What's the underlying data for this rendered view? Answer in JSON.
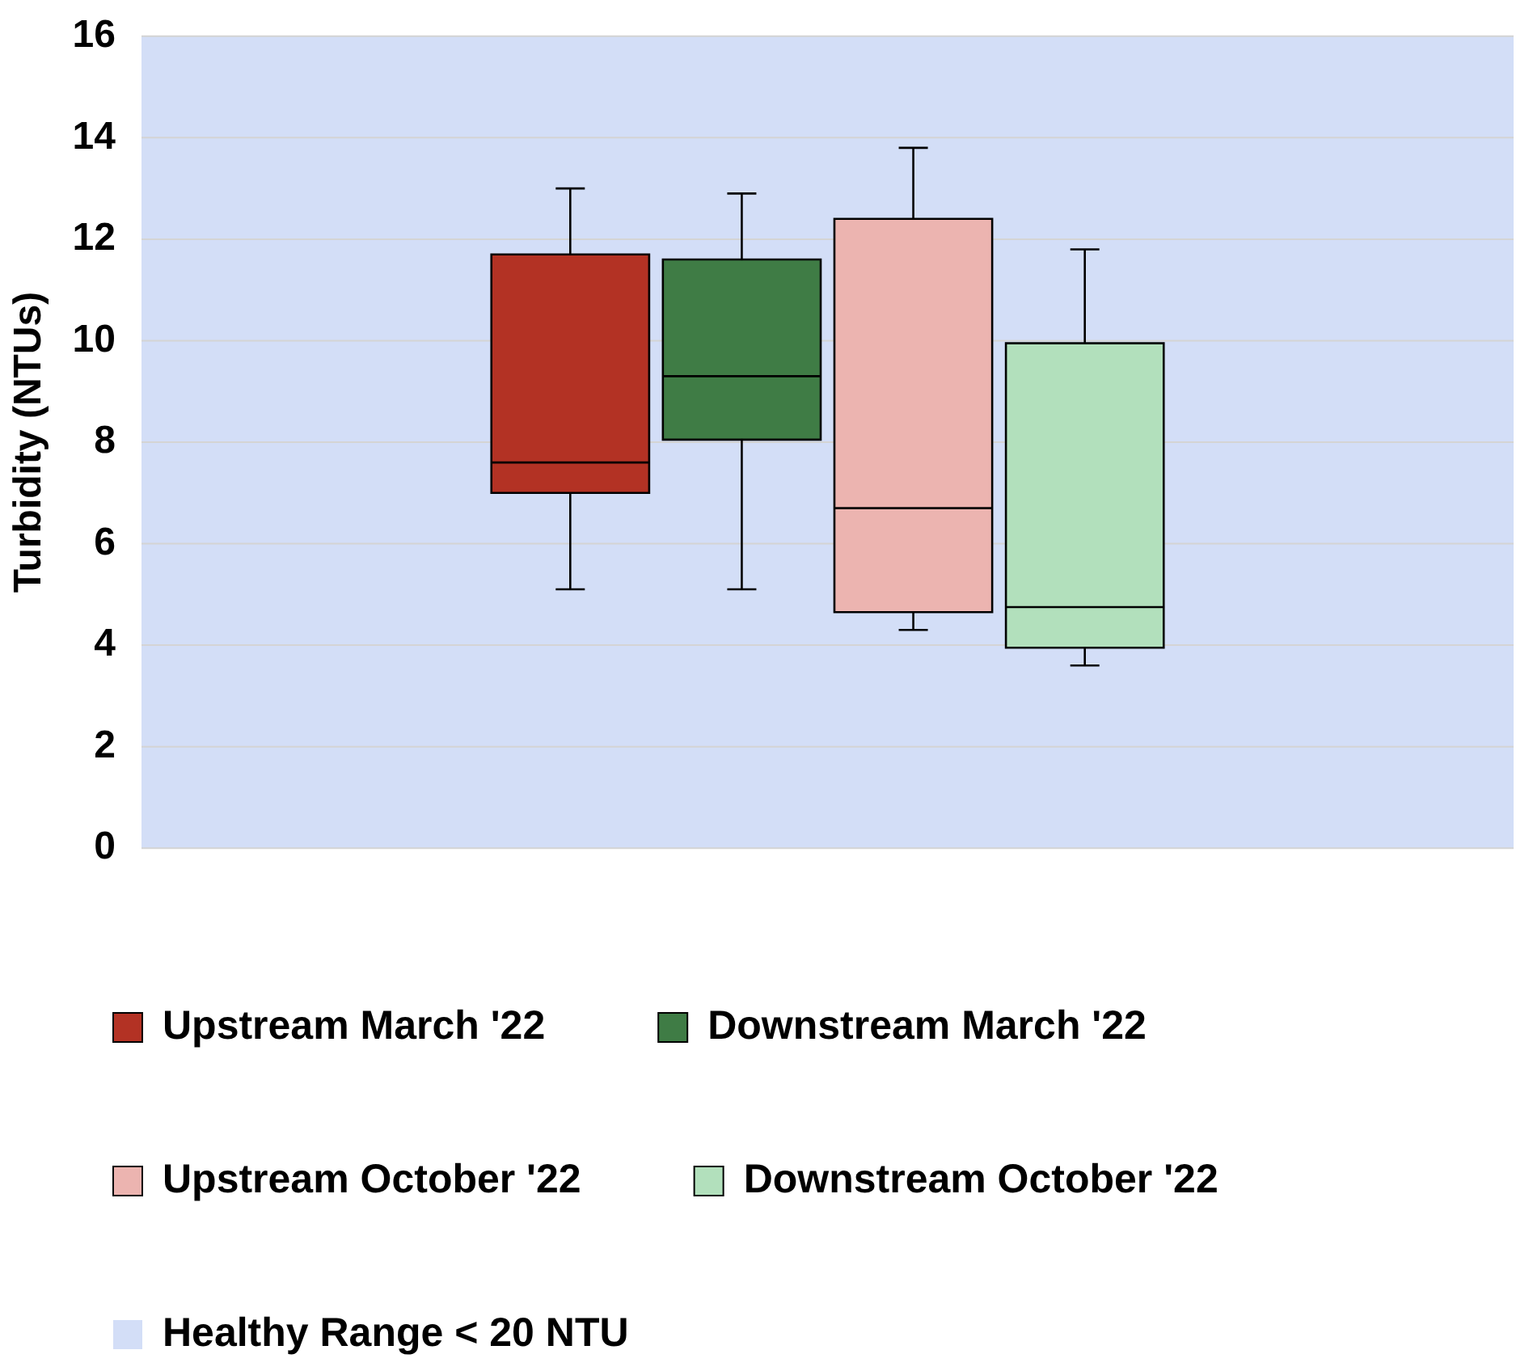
{
  "chart_data": {
    "type": "box",
    "ylabel": "Turbidity (NTUs)",
    "categories": [
      null
    ],
    "series": [
      {
        "name": "Upstream March '22",
        "color": "#b33224",
        "boxes": [
          {
            "low": 5.1,
            "q1": 7.0,
            "median": 7.6,
            "q3": 11.7,
            "high": 13.0
          }
        ]
      },
      {
        "name": "Downstream March '22",
        "color": "#3f7c45",
        "boxes": [
          {
            "low": 5.1,
            "q1": 8.05,
            "median": 9.3,
            "q3": 11.6,
            "high": 12.9
          }
        ]
      },
      {
        "name": "Upstream October '22",
        "color": "#ecb4b0",
        "boxes": [
          {
            "low": 4.3,
            "q1": 4.65,
            "median": 6.7,
            "q3": 12.4,
            "high": 13.8
          }
        ]
      },
      {
        "name": "Downstream October '22",
        "color": "#b2e0bc",
        "boxes": [
          {
            "low": 3.6,
            "q1": 3.95,
            "median": 4.75,
            "q3": 9.95,
            "high": 11.8
          }
        ]
      }
    ],
    "bands": [
      {
        "axis": "y",
        "from": 0,
        "to": 16,
        "label": "Healthy Range < 20 NTU",
        "color": "#d3def7"
      }
    ],
    "ylim": [
      0,
      16
    ],
    "yticks": [
      0,
      2,
      4,
      6,
      8,
      10,
      12,
      14,
      16
    ],
    "grid": "y",
    "legend": "bottom"
  }
}
